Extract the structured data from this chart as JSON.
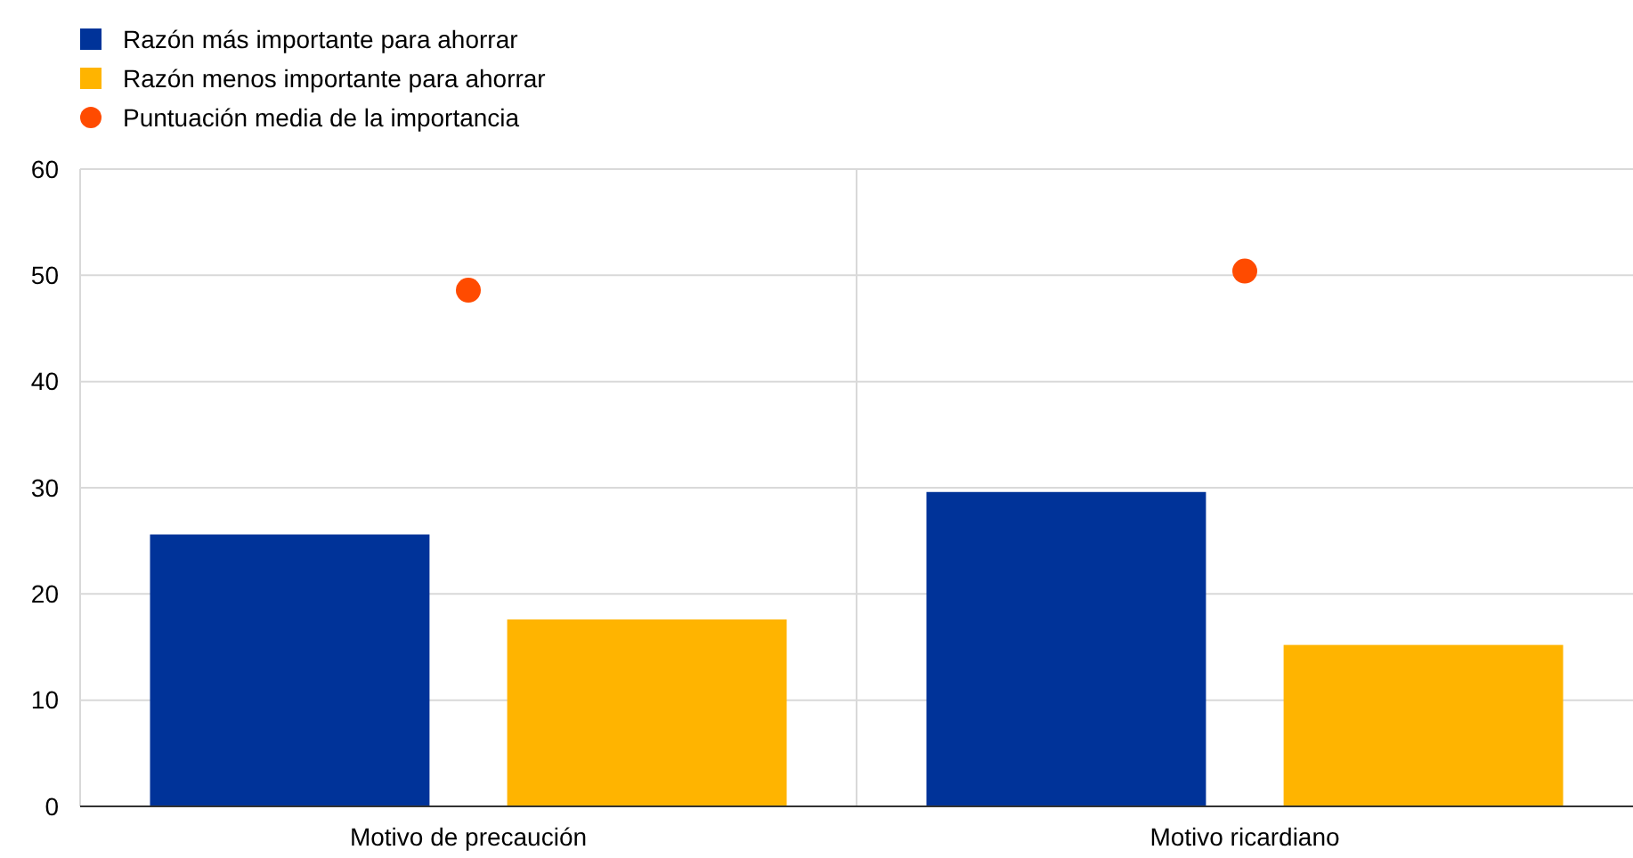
{
  "chart_data": {
    "type": "bar",
    "categories": [
      "Motivo de precaución",
      "Motivo ricardiano"
    ],
    "series": [
      {
        "name": "Razón más importante para ahorrar",
        "color": "#003399",
        "values": [
          25.6,
          29.6
        ]
      },
      {
        "name": "Razón menos importante para ahorrar",
        "color": "#ffb400",
        "values": [
          17.6,
          15.2
        ]
      },
      {
        "name": "Puntuación media de la importancia",
        "type": "scatter",
        "color": "#ff4b00",
        "x": [
          "Motivo de precaución",
          "Motivo ricardiano"
        ],
        "values": [
          48.6,
          50.4
        ]
      }
    ],
    "ylim": [
      0,
      60
    ],
    "yticks": [
      0,
      10,
      20,
      30,
      40,
      50,
      60
    ],
    "grid": "y",
    "legend": "top left",
    "marker": "circle"
  }
}
